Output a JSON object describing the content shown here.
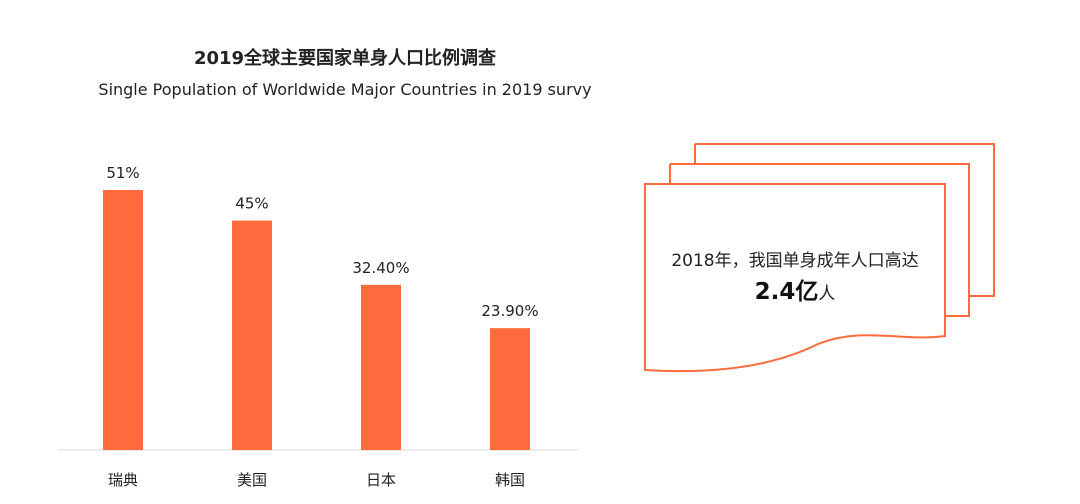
{
  "title_cn": "2019全球主要国家单身人口比例调查",
  "title_en": "Single Population of Worldwide Major Countries in 2019 survy",
  "chart_data": {
    "type": "bar",
    "categories": [
      "瑞典",
      "美国",
      "日本",
      "韩国"
    ],
    "values": [
      51,
      45,
      32.4,
      23.9
    ],
    "value_labels": [
      "51%",
      "45%",
      "32.40%",
      "23.90%"
    ],
    "unit": "%",
    "ylim": [
      0,
      51
    ],
    "bar_color": "#FF6B3D",
    "axis_color": "#D9D9D9",
    "grid": false,
    "legend": "none"
  },
  "callout": {
    "line1": "2018年，我国单身成年人口高达",
    "value": "2.4亿",
    "unit": "人",
    "border_color": "#FF6B3D"
  }
}
